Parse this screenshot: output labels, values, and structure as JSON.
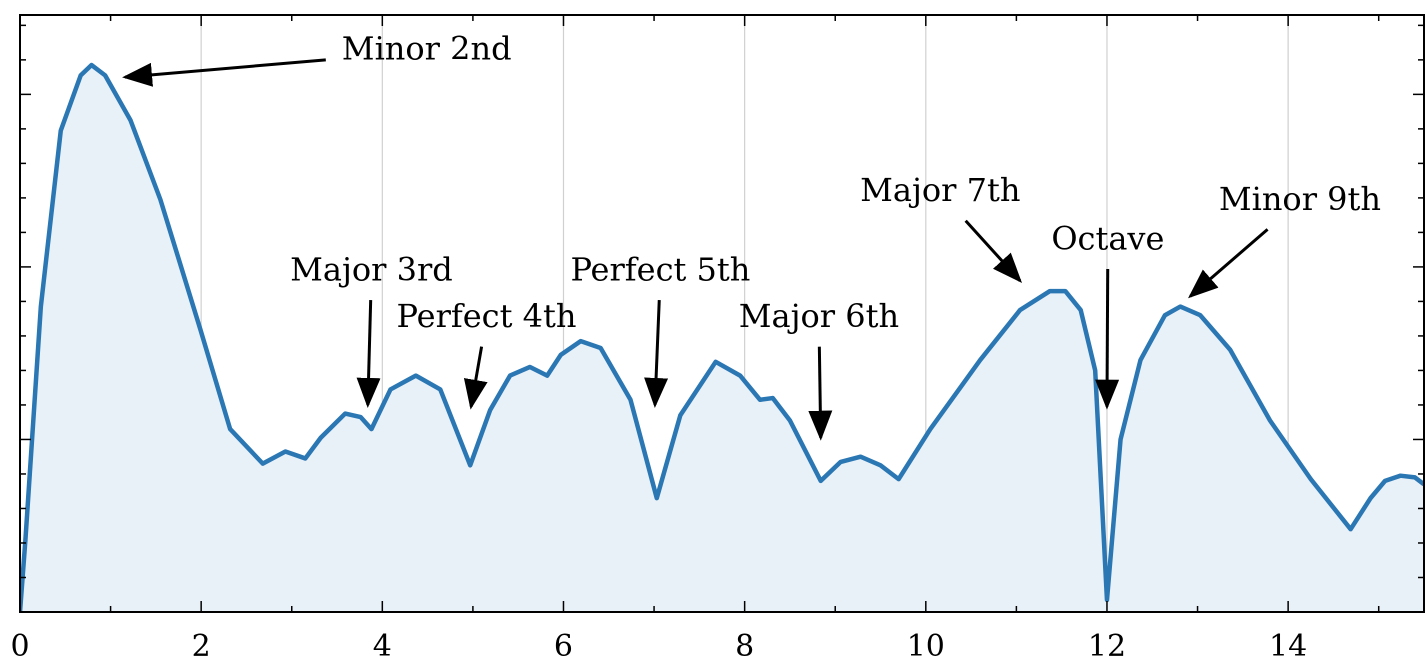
{
  "chart_data": {
    "type": "area",
    "xlim": [
      0,
      15.5
    ],
    "ylim": [
      0,
      3.46
    ],
    "xticks": [
      0,
      2,
      4,
      6,
      8,
      10,
      12,
      14
    ],
    "xminor": [
      1,
      3,
      5,
      7,
      9,
      11,
      13,
      15
    ],
    "yticks": [
      0,
      1,
      2,
      3
    ],
    "yminor": [
      0.2,
      0.4,
      0.6,
      0.8,
      1.2,
      1.4,
      1.6,
      1.8,
      2.2,
      2.4,
      2.6,
      2.8,
      3.2,
      3.4
    ],
    "ytick_labels": false,
    "grid": "x",
    "series": [
      {
        "color": "#2a77b4",
        "fill": "#e8f0f8",
        "x": [
          0,
          0.06,
          0.23,
          0.45,
          0.67,
          0.79,
          0.94,
          1.22,
          1.55,
          1.99,
          2.32,
          2.68,
          2.93,
          3.15,
          3.32,
          3.59,
          3.76,
          3.88,
          4.09,
          4.37,
          4.64,
          4.97,
          5.19,
          5.41,
          5.63,
          5.82,
          5.97,
          6.19,
          6.41,
          6.74,
          7.03,
          7.29,
          7.68,
          7.95,
          8.17,
          8.31,
          8.5,
          8.84,
          9.06,
          9.28,
          9.5,
          9.7,
          10.05,
          10.6,
          11.04,
          11.37,
          11.54,
          11.71,
          11.87,
          12.0,
          12.15,
          12.37,
          12.64,
          12.81,
          13.03,
          13.36,
          13.8,
          14.25,
          14.69,
          14.91,
          15.07,
          15.24,
          15.4,
          15.5
        ],
        "values": [
          0,
          0.42,
          1.77,
          2.79,
          3.11,
          3.17,
          3.11,
          2.85,
          2.39,
          1.64,
          1.06,
          0.86,
          0.93,
          0.89,
          1.01,
          1.15,
          1.13,
          1.06,
          1.29,
          1.37,
          1.29,
          0.85,
          1.17,
          1.37,
          1.42,
          1.37,
          1.49,
          1.57,
          1.53,
          1.23,
          0.66,
          1.14,
          1.45,
          1.37,
          1.23,
          1.24,
          1.11,
          0.76,
          0.87,
          0.9,
          0.85,
          0.77,
          1.06,
          1.46,
          1.75,
          1.86,
          1.86,
          1.75,
          1.4,
          0.07,
          1.0,
          1.46,
          1.72,
          1.77,
          1.72,
          1.52,
          1.11,
          0.77,
          0.48,
          0.66,
          0.76,
          0.79,
          0.78,
          0.74
        ]
      }
    ],
    "annotations": [
      {
        "text": "Minor 2nd",
        "xy": [
          1.16,
          3.1
        ],
        "xytext": [
          4.49,
          3.25
        ]
      },
      {
        "text": "Major 3rd",
        "xy": [
          3.84,
          1.2
        ],
        "xytext": [
          3.88,
          1.97
        ]
      },
      {
        "text": "Perfect 4th",
        "xy": [
          4.98,
          1.19
        ],
        "xytext": [
          5.15,
          1.7
        ]
      },
      {
        "text": "Perfect 5th",
        "xy": [
          7.01,
          1.2
        ],
        "xytext": [
          7.07,
          1.97
        ]
      },
      {
        "text": "Major 6th",
        "xy": [
          8.84,
          1.01
        ],
        "xytext": [
          8.82,
          1.7
        ]
      },
      {
        "text": "Major 7th",
        "xy": [
          11.04,
          1.92
        ],
        "xytext": [
          10.16,
          2.43
        ]
      },
      {
        "text": "Octave",
        "xy": [
          12.0,
          1.19
        ],
        "xytext": [
          12.01,
          2.15
        ]
      },
      {
        "text": "Minor 9th",
        "xy": [
          12.92,
          1.83
        ],
        "xytext": [
          14.13,
          2.38
        ]
      }
    ]
  }
}
